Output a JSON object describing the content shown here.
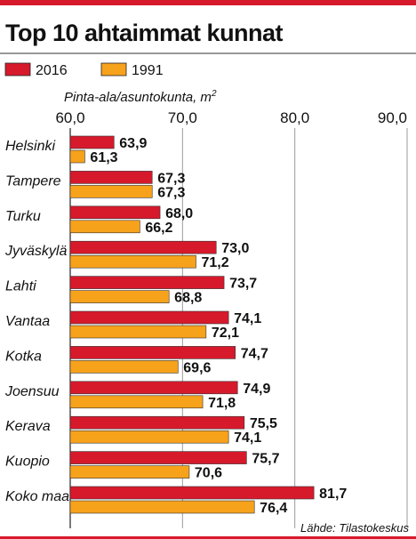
{
  "chart_data": {
    "type": "bar",
    "orientation": "horizontal",
    "title": "Top 10 ahtaimmat kunnat",
    "axis_label": "Pinta-ala/asuntokunta, m",
    "axis_label_superscript": "2",
    "xlim": [
      60.0,
      90.0
    ],
    "ticks": [
      "60,0",
      "70,0",
      "80,0",
      "90,0"
    ],
    "tick_values": [
      60,
      70,
      80,
      90
    ],
    "grid": true,
    "legend_position": "top-left",
    "categories": [
      "Helsinki",
      "Tampere",
      "Turku",
      "Jyväskylä",
      "Lahti",
      "Vantaa",
      "Kotka",
      "Joensuu",
      "Kerava",
      "Kuopio",
      "Koko maa"
    ],
    "series": [
      {
        "name": "2016",
        "color": "#d7192c",
        "values": [
          63.9,
          67.3,
          68.0,
          73.0,
          73.7,
          74.1,
          74.7,
          74.9,
          75.5,
          75.7,
          81.7
        ],
        "labels": [
          "63,9",
          "67,3",
          "68,0",
          "73,0",
          "73,7",
          "74,1",
          "74,7",
          "74,9",
          "75,5",
          "75,7",
          "81,7"
        ]
      },
      {
        "name": "1991",
        "color": "#f7a21b",
        "values": [
          61.3,
          67.3,
          66.2,
          71.2,
          68.8,
          72.1,
          69.6,
          71.8,
          74.1,
          70.6,
          76.4
        ],
        "labels": [
          "61,3",
          "67,3",
          "66,2",
          "71,2",
          "68,8",
          "72,1",
          "69,6",
          "71,8",
          "74,1",
          "70,6",
          "76,4"
        ]
      }
    ],
    "source": "Lähde: Tilastokeskus",
    "colors": {
      "accent_rule": "#d7192c",
      "grid": "#9a9a9a",
      "text": "#111111"
    }
  }
}
